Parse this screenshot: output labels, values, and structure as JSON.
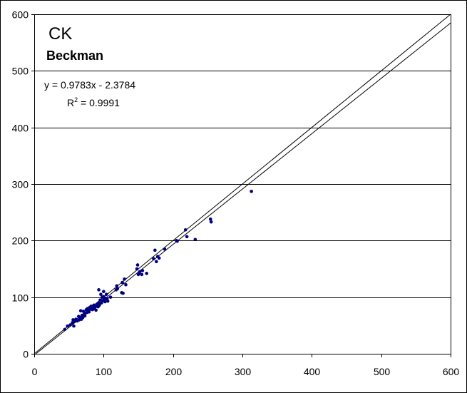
{
  "chart_data": {
    "type": "scatter",
    "title": "CK",
    "subtitle": "Beckman",
    "xlabel": "",
    "ylabel": "",
    "xlim": [
      0,
      600
    ],
    "ylim": [
      0,
      600
    ],
    "xticks": [
      0,
      100,
      200,
      300,
      400,
      500,
      600
    ],
    "yticks": [
      0,
      100,
      200,
      300,
      400,
      500,
      600
    ],
    "grid": "horizontal",
    "equation": "y = 0.9783x - 2.3784",
    "r2_label": "R",
    "r2_sup": "2",
    "r2_value": " = 0.9991",
    "colors": {
      "points": "#000080",
      "lines": "#000000",
      "grid": "#000000"
    },
    "series": [
      {
        "points": [
          [
            44,
            43
          ],
          [
            48,
            49
          ],
          [
            52,
            51
          ],
          [
            55,
            55
          ],
          [
            56,
            60
          ],
          [
            57,
            49
          ],
          [
            58,
            57
          ],
          [
            60,
            61
          ],
          [
            62,
            58
          ],
          [
            64,
            66
          ],
          [
            65,
            60
          ],
          [
            66,
            64
          ],
          [
            67,
            76
          ],
          [
            68,
            61
          ],
          [
            69,
            68
          ],
          [
            70,
            64
          ],
          [
            71,
            75
          ],
          [
            72,
            70
          ],
          [
            73,
            67
          ],
          [
            74,
            72
          ],
          [
            75,
            78
          ],
          [
            76,
            73
          ],
          [
            77,
            80
          ],
          [
            78,
            76
          ],
          [
            79,
            74
          ],
          [
            80,
            82
          ],
          [
            81,
            79
          ],
          [
            82,
            84
          ],
          [
            83,
            80
          ],
          [
            84,
            78
          ],
          [
            85,
            82
          ],
          [
            86,
            86
          ],
          [
            87,
            80
          ],
          [
            88,
            83
          ],
          [
            89,
            77
          ],
          [
            90,
            85
          ],
          [
            91,
            88
          ],
          [
            92,
            83
          ],
          [
            93,
            90
          ],
          [
            93,
            113
          ],
          [
            94,
            86
          ],
          [
            95,
            95
          ],
          [
            96,
            105
          ],
          [
            97,
            90
          ],
          [
            98,
            100
          ],
          [
            99,
            94
          ],
          [
            100,
            101
          ],
          [
            100,
            110
          ],
          [
            101,
            96
          ],
          [
            102,
            92
          ],
          [
            103,
            98
          ],
          [
            104,
            105
          ],
          [
            105,
            97
          ],
          [
            106,
            93
          ],
          [
            110,
            100
          ],
          [
            118,
            113
          ],
          [
            119,
            120
          ],
          [
            120,
            115
          ],
          [
            126,
            108
          ],
          [
            127,
            126
          ],
          [
            128,
            107
          ],
          [
            130,
            132
          ],
          [
            132,
            122
          ],
          [
            148,
            150
          ],
          [
            149,
            157
          ],
          [
            150,
            140
          ],
          [
            151,
            142
          ],
          [
            152,
            145
          ],
          [
            155,
            140
          ],
          [
            156,
            147
          ],
          [
            162,
            142
          ],
          [
            172,
            168
          ],
          [
            174,
            183
          ],
          [
            176,
            163
          ],
          [
            178,
            172
          ],
          [
            180,
            169
          ],
          [
            188,
            185
          ],
          [
            205,
            200
          ],
          [
            206,
            199
          ],
          [
            218,
            219
          ],
          [
            220,
            207
          ],
          [
            232,
            202
          ],
          [
            254,
            238
          ],
          [
            255,
            233
          ],
          [
            313,
            287
          ]
        ]
      }
    ],
    "regression": {
      "slope": 0.9783,
      "intercept": -2.3784,
      "x_range": [
        0,
        600
      ]
    },
    "identity": {
      "x_range": [
        0,
        600
      ]
    }
  }
}
